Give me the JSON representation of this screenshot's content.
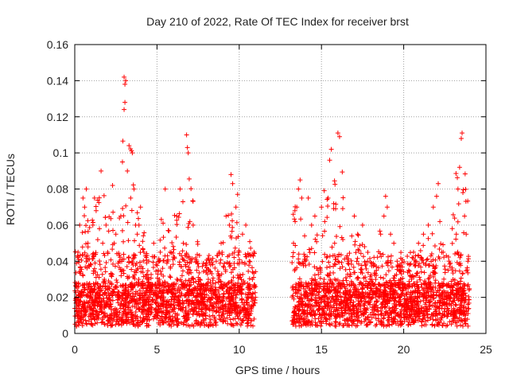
{
  "chart_data": {
    "type": "scatter",
    "title": "Day 210 of 2022, Rate Of TEC Index for receiver brst",
    "xlabel": "GPS time / hours",
    "ylabel": "ROTI / TECUs",
    "xlim": [
      0,
      25
    ],
    "ylim": [
      0,
      0.16
    ],
    "x_ticks": [
      "0",
      "5",
      "10",
      "15",
      "20",
      "25"
    ],
    "y_ticks": [
      "0",
      "0.02",
      "0.04",
      "0.06",
      "0.08",
      "0.1",
      "0.12",
      "0.14",
      "0.16"
    ],
    "grid": true,
    "marker": "+",
    "marker_color": "#ff0000",
    "data_gap_hours": [
      11.0,
      13.2
    ],
    "series": [
      {
        "points": [
          [
            0.1,
            0.012
          ],
          [
            0.2,
            0.045
          ],
          [
            0.3,
            0.06
          ],
          [
            0.35,
            0.02
          ],
          [
            0.5,
            0.075
          ],
          [
            0.5,
            0.032
          ],
          [
            0.6,
            0.07
          ],
          [
            0.7,
            0.08
          ],
          [
            0.8,
            0.05
          ],
          [
            0.9,
            0.015
          ],
          [
            1.0,
            0.038
          ],
          [
            1.1,
            0.06
          ],
          [
            1.2,
            0.075
          ],
          [
            1.3,
            0.068
          ],
          [
            1.4,
            0.022
          ],
          [
            1.5,
            0.058
          ],
          [
            1.6,
            0.09
          ],
          [
            1.7,
            0.05
          ],
          [
            1.8,
            0.03
          ],
          [
            1.9,
            0.06
          ],
          [
            2.0,
            0.045
          ],
          [
            2.1,
            0.025
          ],
          [
            2.3,
            0.082
          ],
          [
            2.4,
            0.05
          ],
          [
            2.5,
            0.055
          ],
          [
            2.6,
            0.012
          ],
          [
            2.7,
            0.04
          ],
          [
            2.8,
            0.065
          ],
          [
            2.9,
            0.095
          ],
          [
            3.0,
            0.142
          ],
          [
            3.05,
            0.138
          ],
          [
            3.1,
            0.14
          ],
          [
            3.0,
            0.124
          ],
          [
            3.05,
            0.128
          ],
          [
            3.2,
            0.09
          ],
          [
            3.3,
            0.104
          ],
          [
            3.4,
            0.075
          ],
          [
            3.5,
            0.1
          ],
          [
            3.6,
            0.08
          ],
          [
            3.7,
            0.06
          ],
          [
            3.8,
            0.055
          ],
          [
            4.0,
            0.07
          ],
          [
            4.2,
            0.045
          ],
          [
            4.5,
            0.04
          ],
          [
            4.8,
            0.05
          ],
          [
            5.0,
            0.02
          ],
          [
            5.2,
            0.045
          ],
          [
            5.5,
            0.08
          ],
          [
            5.8,
            0.045
          ],
          [
            6.0,
            0.025
          ],
          [
            6.2,
            0.065
          ],
          [
            6.4,
            0.08
          ],
          [
            6.6,
            0.05
          ],
          [
            6.8,
            0.11
          ],
          [
            6.85,
            0.103
          ],
          [
            6.9,
            0.1
          ],
          [
            7.0,
            0.062
          ],
          [
            7.2,
            0.06
          ],
          [
            7.4,
            0.04
          ],
          [
            7.6,
            0.03
          ],
          [
            7.8,
            0.018
          ],
          [
            8.0,
            0.035
          ],
          [
            8.3,
            0.025
          ],
          [
            8.6,
            0.04
          ],
          [
            8.9,
            0.05
          ],
          [
            9.2,
            0.065
          ],
          [
            9.4,
            0.06
          ],
          [
            9.5,
            0.088
          ],
          [
            9.6,
            0.083
          ],
          [
            9.8,
            0.07
          ],
          [
            9.9,
            0.077
          ],
          [
            10.0,
            0.045
          ],
          [
            10.2,
            0.055
          ],
          [
            10.4,
            0.06
          ],
          [
            10.6,
            0.04
          ],
          [
            10.8,
            0.03
          ],
          [
            10.9,
            0.045
          ],
          [
            13.3,
            0.05
          ],
          [
            13.4,
            0.062
          ],
          [
            13.5,
            0.07
          ],
          [
            13.6,
            0.08
          ],
          [
            13.7,
            0.085
          ],
          [
            13.8,
            0.075
          ],
          [
            14.0,
            0.04
          ],
          [
            14.2,
            0.075
          ],
          [
            14.4,
            0.06
          ],
          [
            14.6,
            0.065
          ],
          [
            14.8,
            0.035
          ],
          [
            15.0,
            0.07
          ],
          [
            15.2,
            0.062
          ],
          [
            15.4,
            0.075
          ],
          [
            15.5,
            0.096
          ],
          [
            15.6,
            0.102
          ],
          [
            15.8,
            0.05
          ],
          [
            16.0,
            0.111
          ],
          [
            16.1,
            0.109
          ],
          [
            16.3,
            0.052
          ],
          [
            16.6,
            0.04
          ],
          [
            17.0,
            0.065
          ],
          [
            17.2,
            0.055
          ],
          [
            17.5,
            0.06
          ],
          [
            17.8,
            0.04
          ],
          [
            18.0,
            0.025
          ],
          [
            18.3,
            0.03
          ],
          [
            18.6,
            0.055
          ],
          [
            18.8,
            0.065
          ],
          [
            18.9,
            0.076
          ],
          [
            19.0,
            0.07
          ],
          [
            19.2,
            0.055
          ],
          [
            19.4,
            0.05
          ],
          [
            19.6,
            0.04
          ],
          [
            19.8,
            0.03
          ],
          [
            20.0,
            0.025
          ],
          [
            20.3,
            0.035
          ],
          [
            20.6,
            0.045
          ],
          [
            20.9,
            0.05
          ],
          [
            21.2,
            0.055
          ],
          [
            21.5,
            0.06
          ],
          [
            21.8,
            0.07
          ],
          [
            22.0,
            0.076
          ],
          [
            22.1,
            0.083
          ],
          [
            22.2,
            0.062
          ],
          [
            22.4,
            0.045
          ],
          [
            22.7,
            0.035
          ],
          [
            23.0,
            0.03
          ],
          [
            23.2,
            0.055
          ],
          [
            23.3,
            0.08
          ],
          [
            23.4,
            0.092
          ],
          [
            23.5,
            0.108
          ],
          [
            23.55,
            0.111
          ],
          [
            23.6,
            0.078
          ],
          [
            23.7,
            0.065
          ],
          [
            23.8,
            0.055
          ],
          [
            23.9,
            0.04
          ]
        ]
      }
    ]
  }
}
